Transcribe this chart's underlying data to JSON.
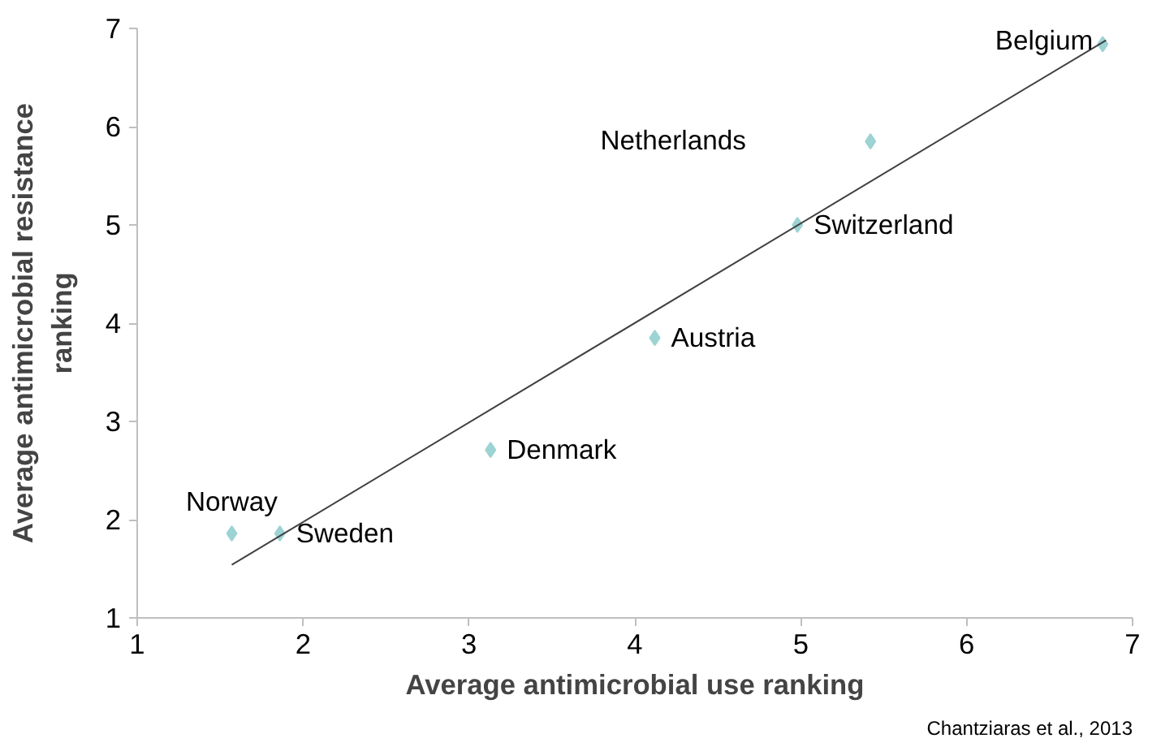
{
  "chart_data": {
    "type": "scatter",
    "xlabel": "Average antimicrobial use ranking",
    "ylabel": "Average antimicrobial resistance ranking",
    "xlim": [
      1,
      7
    ],
    "ylim": [
      1,
      7
    ],
    "xticks": [
      1,
      2,
      3,
      4,
      5,
      6,
      7
    ],
    "yticks": [
      1,
      2,
      3,
      4,
      5,
      6,
      7
    ],
    "grid": false,
    "series": [
      {
        "marker": "diamond",
        "color": "#9dd3d3",
        "x": [
          1.57,
          1.86,
          3.13,
          4.12,
          4.98,
          5.42,
          6.82
        ],
        "values": [
          1.86,
          1.86,
          2.71,
          3.85,
          5.0,
          5.85,
          6.84
        ]
      },
      {
        "type": "line",
        "color": "#404040",
        "x": [
          1.57,
          6.84
        ],
        "values": [
          1.54,
          6.88
        ]
      }
    ],
    "annotations": [
      {
        "text": "Norway",
        "x": 1.57,
        "y": 1.86
      },
      {
        "text": "Sweden",
        "x": 1.86,
        "y": 1.86
      },
      {
        "text": "Denmark",
        "x": 3.13,
        "y": 2.71
      },
      {
        "text": "Austria",
        "x": 4.12,
        "y": 3.85
      },
      {
        "text": "Switzerland",
        "x": 4.98,
        "y": 5.0
      },
      "Netherlands",
      {
        "text": "Belgium",
        "x": 6.82,
        "y": 6.84
      },
      "Chantziaras et al., 2013"
    ]
  }
}
